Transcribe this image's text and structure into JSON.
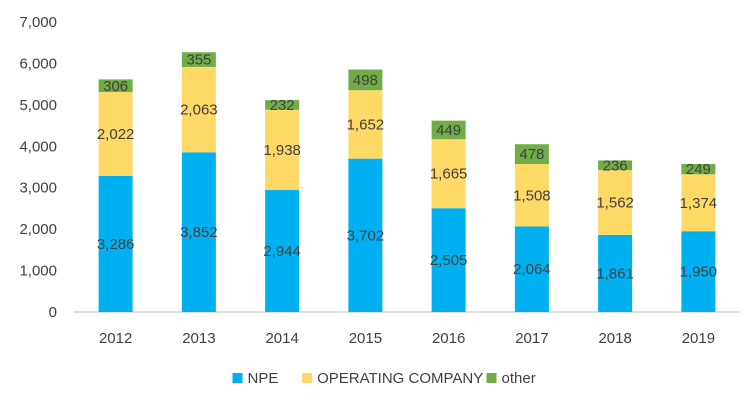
{
  "chart_data": {
    "type": "bar",
    "stacked": true,
    "categories": [
      "2012",
      "2013",
      "2014",
      "2015",
      "2016",
      "2017",
      "2018",
      "2019"
    ],
    "series": [
      {
        "name": "NPE",
        "color": "#00b0f0",
        "values": [
          3286,
          3852,
          2944,
          3702,
          2505,
          2064,
          1861,
          1950
        ]
      },
      {
        "name": "OPERATING COMPANY",
        "color": "#ffd966",
        "values": [
          2022,
          2063,
          1938,
          1652,
          1665,
          1508,
          1562,
          1374
        ]
      },
      {
        "name": "other",
        "color": "#70ad47",
        "values": [
          306,
          355,
          232,
          498,
          449,
          478,
          236,
          249
        ]
      }
    ],
    "data_labels": [
      [
        "3,286",
        "3,852",
        "2,944",
        "3,702",
        "2,505",
        "2,064",
        "1,861",
        "1,950"
      ],
      [
        "2,022",
        "2,063",
        "1,938",
        "1,652",
        "1,665",
        "1,508",
        "1,562",
        "1,374"
      ],
      [
        "306",
        "355",
        "232",
        "498",
        "449",
        "478",
        "236",
        "249"
      ]
    ],
    "yticks": [
      0,
      1000,
      2000,
      3000,
      4000,
      5000,
      6000,
      7000
    ],
    "ytick_labels": [
      "0",
      "1,000",
      "2,000",
      "3,000",
      "4,000",
      "5,000",
      "6,000",
      "7,000"
    ],
    "ylim": [
      0,
      7000
    ],
    "grid": false,
    "legend": "bottom"
  }
}
